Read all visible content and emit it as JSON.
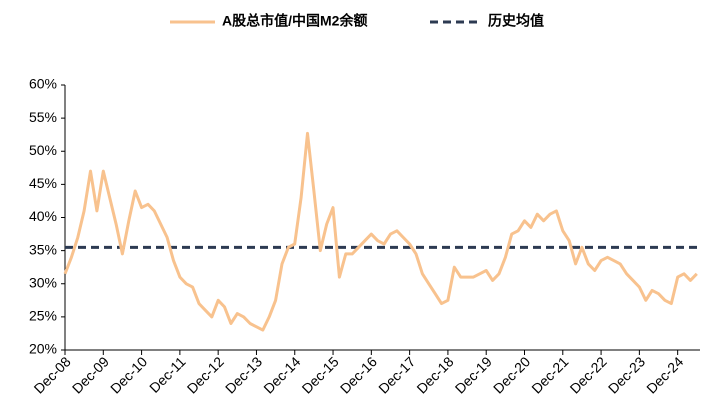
{
  "chart_data": {
    "type": "line",
    "categories": [
      "Dec-08",
      null,
      null,
      null,
      null,
      null,
      "Dec-09",
      null,
      null,
      null,
      null,
      null,
      "Dec-10",
      null,
      null,
      null,
      null,
      null,
      "Dec-11",
      null,
      null,
      null,
      null,
      null,
      "Dec-12",
      null,
      null,
      null,
      null,
      null,
      "Dec-13",
      null,
      null,
      null,
      null,
      null,
      "Dec-14",
      null,
      null,
      null,
      null,
      null,
      "Dec-15",
      null,
      null,
      null,
      null,
      null,
      "Dec-16",
      null,
      null,
      null,
      null,
      null,
      "Dec-17",
      null,
      null,
      null,
      null,
      null,
      "Dec-18",
      null,
      null,
      null,
      null,
      null,
      "Dec-19",
      null,
      null,
      null,
      null,
      null,
      "Dec-20",
      null,
      null,
      null,
      null,
      null,
      "Dec-21",
      null,
      null,
      null,
      null,
      null,
      "Dec-22",
      null,
      null,
      null,
      null,
      null,
      "Dec-23",
      null,
      null,
      null,
      null,
      null,
      "Dec-24",
      null,
      null,
      null
    ],
    "series": [
      {
        "name": "A股总市值/中国M2余额",
        "color": "#f8c28e",
        "values": [
          31.5,
          34,
          37,
          41,
          47,
          41,
          47,
          43,
          39,
          34.5,
          39.5,
          44,
          41.5,
          42,
          41,
          39,
          37,
          33.5,
          31,
          30,
          29.5,
          27,
          26,
          25,
          27.5,
          26.5,
          24,
          25.5,
          25,
          24,
          23.5,
          23,
          25,
          27.5,
          33,
          35.5,
          36,
          43,
          52.7,
          44,
          35,
          39,
          41.5,
          31,
          34.5,
          34.5,
          35.5,
          36.5,
          37.5,
          36.5,
          36,
          37.5,
          38,
          37,
          36,
          34.5,
          31.5,
          30,
          28.5,
          27,
          27.5,
          32.5,
          31,
          31,
          31,
          31.5,
          32,
          30.5,
          31.5,
          34,
          37.5,
          38,
          39.5,
          38.5,
          40.5,
          39.5,
          40.5,
          41,
          38,
          36.5,
          33,
          35.5,
          33,
          32,
          33.5,
          34,
          33.5,
          33,
          31.5,
          30.5,
          29.5,
          27.5,
          29,
          28.5,
          27.5,
          27,
          31,
          31.5,
          30.5,
          31.5
        ]
      }
    ],
    "reference_line": {
      "name": "历史均值",
      "value": 35.5,
      "color": "#2c3a52"
    },
    "ylim": [
      20,
      60
    ],
    "yticks": [
      {
        "value": 20,
        "label": "20%"
      },
      {
        "value": 25,
        "label": "25%"
      },
      {
        "value": 30,
        "label": "30%"
      },
      {
        "value": 35,
        "label": "35%"
      },
      {
        "value": 40,
        "label": "40%"
      },
      {
        "value": 45,
        "label": "45%"
      },
      {
        "value": 50,
        "label": "50%"
      },
      {
        "value": 55,
        "label": "55%"
      },
      {
        "value": 60,
        "label": "60%"
      }
    ]
  }
}
